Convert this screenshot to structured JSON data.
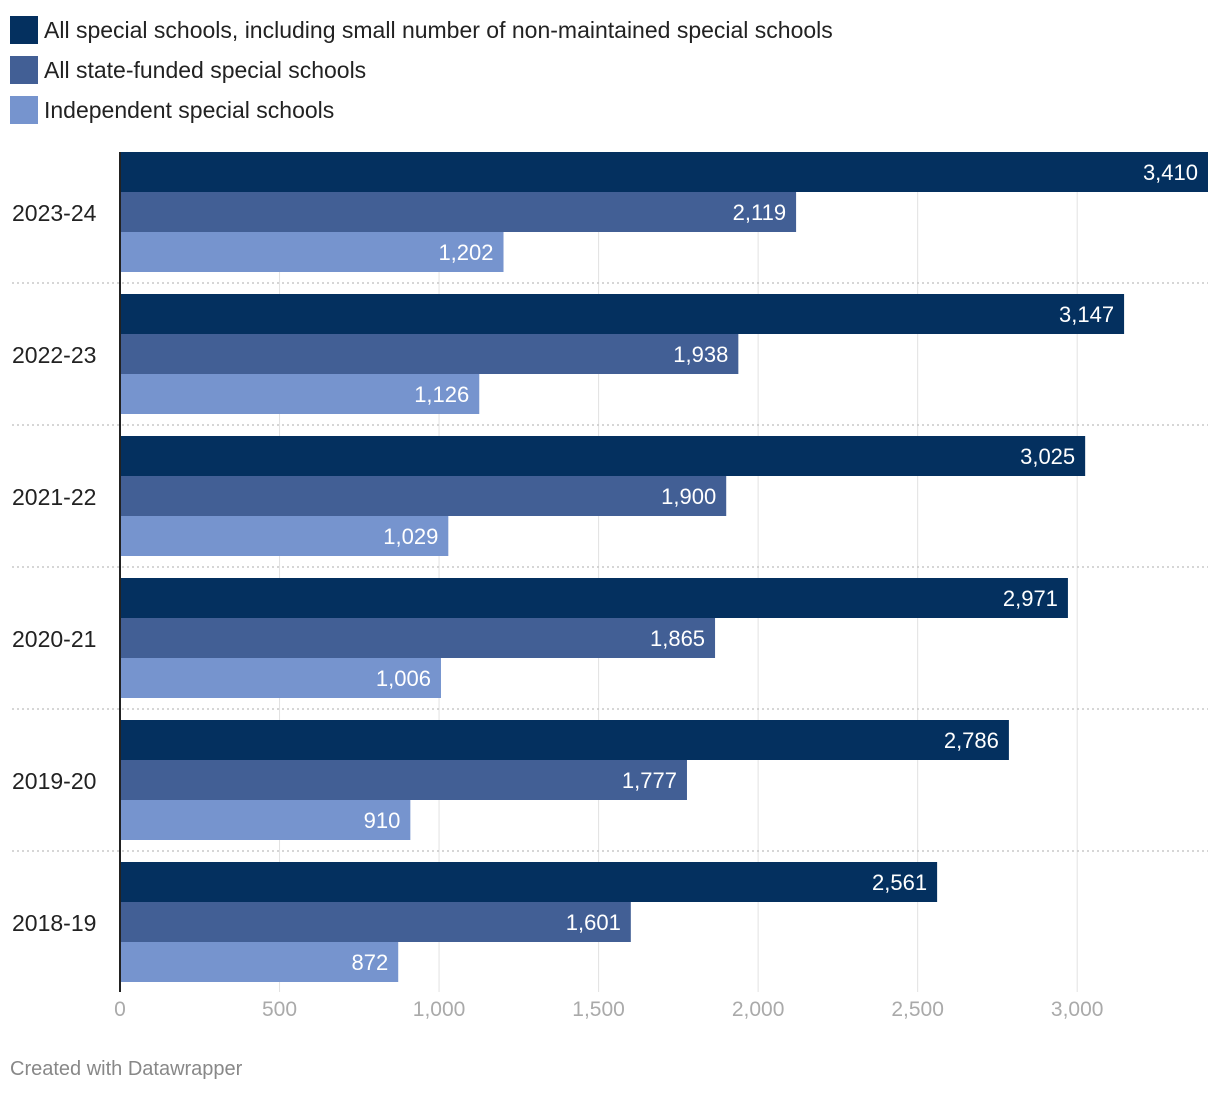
{
  "chart_data": {
    "type": "bar",
    "orientation": "horizontal",
    "categories": [
      "2023-24",
      "2022-23",
      "2021-22",
      "2020-21",
      "2019-20",
      "2018-19"
    ],
    "series": [
      {
        "name": "All special schools, including small number of non-maintained special schools",
        "color": "#04305f",
        "values": [
          3410,
          3147,
          3025,
          2971,
          2786,
          2561
        ],
        "labels": [
          "3,410",
          "3,147",
          "3,025",
          "2,971",
          "2,786",
          "2,561"
        ]
      },
      {
        "name": "All state-funded special schools",
        "color": "#425f95",
        "values": [
          2119,
          1938,
          1900,
          1865,
          1777,
          1601
        ],
        "labels": [
          "2,119",
          "1,938",
          "1,900",
          "1,865",
          "1,777",
          "1,601"
        ]
      },
      {
        "name": "Independent special schools",
        "color": "#7694ce",
        "values": [
          1202,
          1126,
          1029,
          1006,
          910,
          872
        ],
        "labels": [
          "1,202",
          "1,126",
          "1,029",
          "1,006",
          "910",
          "872"
        ]
      }
    ],
    "xlim": [
      0,
      3410
    ],
    "xticks": [
      0,
      500,
      1000,
      1500,
      2000,
      2500,
      3000
    ],
    "xtick_labels": [
      "0",
      "500",
      "1,000",
      "1,500",
      "2,000",
      "2,500",
      "3,000"
    ],
    "legend_position": "top-left",
    "grid": true
  },
  "footer": "Created with Datawrapper"
}
